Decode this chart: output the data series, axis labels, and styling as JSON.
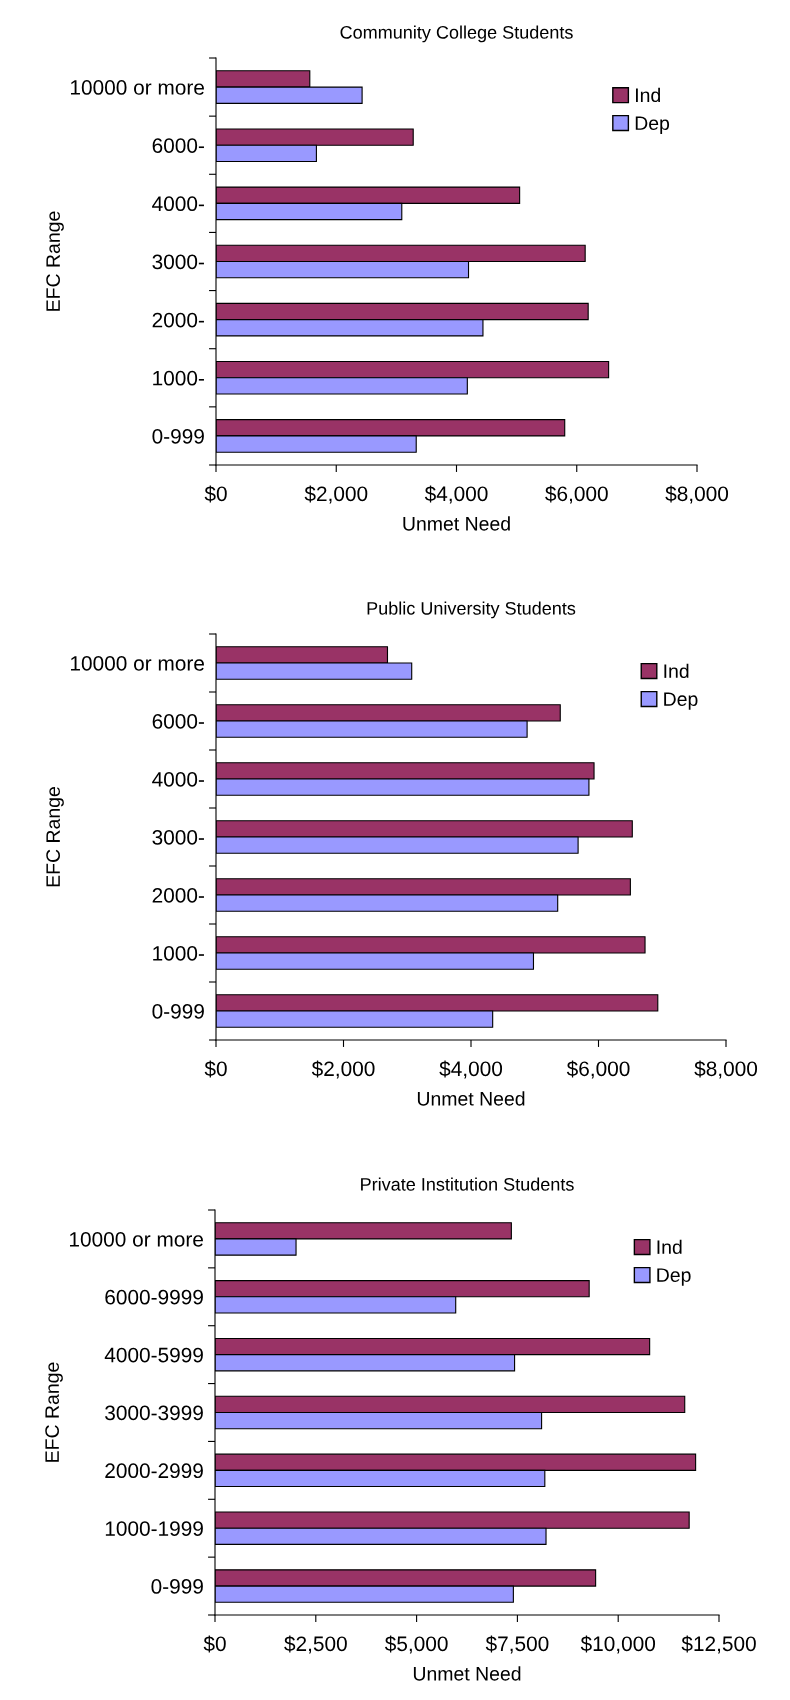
{
  "chart_data": [
    {
      "type": "bar",
      "orientation": "horizontal",
      "title": "Community College Students",
      "xlabel": "Unmet Need",
      "ylabel": "EFC Range",
      "categories": [
        "10000 or more",
        "6000-",
        "4000-",
        "3000-",
        "2000-",
        "1000-",
        "0-999"
      ],
      "series": [
        {
          "name": "Ind",
          "color": "#993366",
          "values": [
            1560,
            3280,
            5050,
            6140,
            6190,
            6530,
            5800
          ]
        },
        {
          "name": "Dep",
          "color": "#9999ff",
          "values": [
            2430,
            1670,
            3090,
            4200,
            4440,
            4180,
            3330
          ]
        }
      ],
      "xlim": [
        0,
        8000
      ],
      "xticks": [
        {
          "value": 0,
          "label": "$0"
        },
        {
          "value": 2000,
          "label": "$2,000"
        },
        {
          "value": 4000,
          "label": "$4,000"
        },
        {
          "value": 6000,
          "label": "$6,000"
        },
        {
          "value": 8000,
          "label": "$8,000"
        }
      ],
      "legend": "top right",
      "grid": false
    },
    {
      "type": "bar",
      "orientation": "horizontal",
      "title": "Public University Students",
      "xlabel": "Unmet Need",
      "ylabel": "EFC Range",
      "categories": [
        "10000 or more",
        "6000-",
        "4000-",
        "3000-",
        "2000-",
        "1000-",
        "0-999"
      ],
      "series": [
        {
          "name": "Ind",
          "color": "#993366",
          "values": [
            2690,
            5400,
            5930,
            6530,
            6500,
            6730,
            6930
          ]
        },
        {
          "name": "Dep",
          "color": "#9999ff",
          "values": [
            3070,
            4880,
            5850,
            5680,
            5360,
            4980,
            4340
          ]
        }
      ],
      "xlim": [
        0,
        8000
      ],
      "xticks": [
        {
          "value": 0,
          "label": "$0"
        },
        {
          "value": 2000,
          "label": "$2,000"
        },
        {
          "value": 4000,
          "label": "$4,000"
        },
        {
          "value": 6000,
          "label": "$6,000"
        },
        {
          "value": 8000,
          "label": "$8,000"
        }
      ],
      "legend": "top right",
      "grid": false
    },
    {
      "type": "bar",
      "orientation": "horizontal",
      "title": "Private Institution Students",
      "xlabel": "Unmet Need",
      "ylabel": "EFC Range",
      "categories": [
        "10000 or more",
        "6000-9999",
        "4000-5999",
        "3000-3999",
        "2000-2999",
        "1000-1999",
        "0-999"
      ],
      "series": [
        {
          "name": "Ind",
          "color": "#993366",
          "values": [
            7350,
            9280,
            10780,
            11650,
            11920,
            11760,
            9440
          ]
        },
        {
          "name": "Dep",
          "color": "#9999ff",
          "values": [
            2010,
            5970,
            7430,
            8100,
            8180,
            8210,
            7400
          ]
        }
      ],
      "xlim": [
        0,
        12500
      ],
      "xticks": [
        {
          "value": 0,
          "label": "$0"
        },
        {
          "value": 2500,
          "label": "$2,500"
        },
        {
          "value": 5000,
          "label": "$5,000"
        },
        {
          "value": 7500,
          "label": "$7,500"
        },
        {
          "value": 10000,
          "label": "$10,000"
        },
        {
          "value": 12500,
          "label": "$12,500"
        }
      ],
      "legend": "top right",
      "grid": false
    }
  ]
}
